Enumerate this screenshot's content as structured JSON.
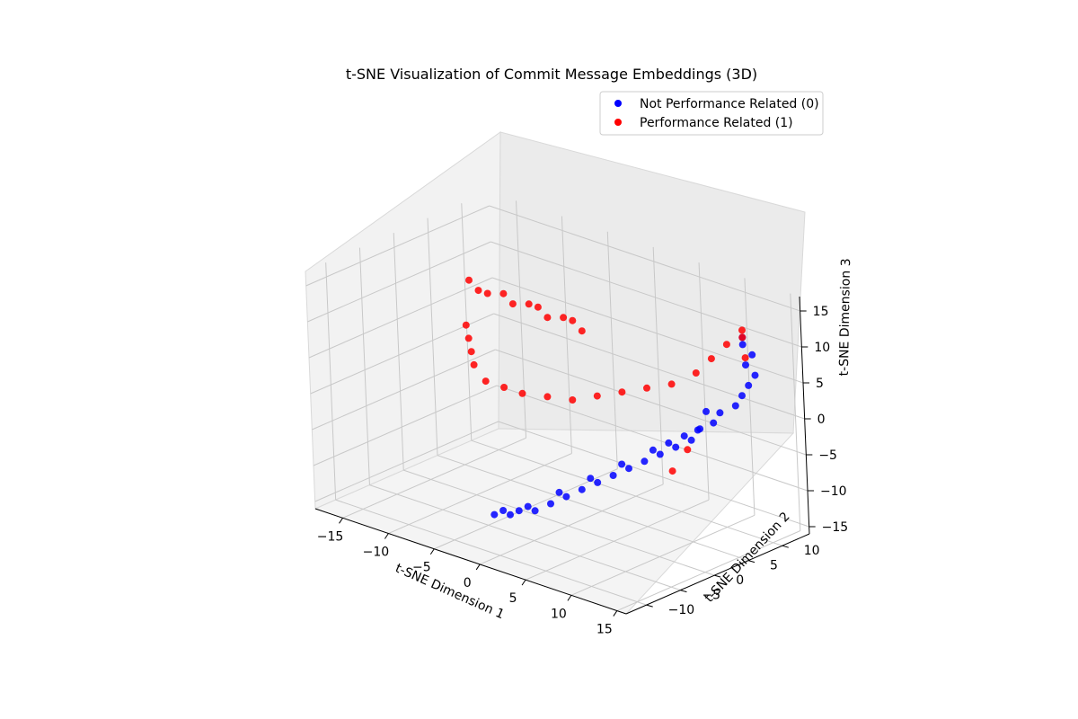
{
  "chart_data": {
    "type": "scatter",
    "projection": "3d",
    "title": "t-SNE Visualization of Commit Message Embeddings (3D)",
    "xlabel": "t-SNE Dimension 1",
    "ylabel": "t-SNE Dimension 2",
    "zlabel": "t-SNE Dimension 3",
    "xlim": [
      -18,
      16
    ],
    "ylim": [
      -13,
      14
    ],
    "zlim": [
      -16,
      17
    ],
    "xticks": [
      -15,
      -10,
      -5,
      0,
      5,
      10,
      15
    ],
    "yticks": [
      -10,
      -5,
      0,
      5,
      10
    ],
    "zticks": [
      -15,
      -10,
      -5,
      0,
      5,
      10,
      15
    ],
    "xtick_labels": [
      "−15",
      "−10",
      "−5",
      "0",
      "5",
      "10",
      "15"
    ],
    "ytick_labels": [
      "−10",
      "−5",
      "0",
      "5",
      "10"
    ],
    "ztick_labels": [
      "−15",
      "−10",
      "−5",
      "0",
      "5",
      "10",
      "15"
    ],
    "grid": true,
    "legend_position": "top-right",
    "series": [
      {
        "name": "Not Performance Related (0)",
        "color": "#0000ff",
        "points": [
          [
            -2,
            -8,
            -12
          ],
          [
            -1,
            -7,
            -12
          ],
          [
            0,
            -7,
            -11
          ],
          [
            1,
            -6,
            -11
          ],
          [
            2,
            -5,
            -10
          ],
          [
            3,
            -4,
            -9
          ],
          [
            4,
            -3,
            -8
          ],
          [
            5,
            -2,
            -7
          ],
          [
            6,
            -1,
            -6
          ],
          [
            7,
            0,
            -5
          ],
          [
            8,
            1,
            -4
          ],
          [
            9,
            2,
            -3
          ],
          [
            10,
            3,
            -2
          ],
          [
            11,
            4,
            -1
          ],
          [
            11,
            5,
            0
          ],
          [
            12,
            6,
            1
          ],
          [
            12,
            7,
            2
          ],
          [
            13,
            8,
            3
          ],
          [
            13,
            9,
            4
          ],
          [
            13,
            10,
            5
          ],
          [
            13,
            11,
            6
          ],
          [
            12,
            11,
            7
          ],
          [
            12,
            12,
            8
          ],
          [
            11,
            12,
            9
          ],
          [
            11,
            12,
            10
          ],
          [
            -1,
            -8,
            -11
          ],
          [
            1,
            -7,
            -10
          ],
          [
            3,
            -5,
            -8
          ],
          [
            5,
            -3,
            -6
          ],
          [
            7,
            -1,
            -4
          ],
          [
            9,
            1,
            -2
          ],
          [
            10,
            2,
            -1
          ],
          [
            11,
            3,
            0
          ],
          [
            12,
            4,
            1
          ],
          [
            12,
            5,
            3
          ]
        ]
      },
      {
        "name": "Performance Related (1)",
        "color": "#ff0000",
        "points": [
          [
            -16,
            8,
            8
          ],
          [
            -15,
            8,
            7
          ],
          [
            -14,
            8,
            7
          ],
          [
            -13,
            9,
            7
          ],
          [
            -12,
            9,
            6
          ],
          [
            -11,
            10,
            6
          ],
          [
            -10,
            10,
            6
          ],
          [
            -9,
            10,
            5
          ],
          [
            -8,
            11,
            5
          ],
          [
            -7,
            11,
            5
          ],
          [
            -6,
            11,
            4
          ],
          [
            -15,
            6,
            3
          ],
          [
            -14,
            5,
            2
          ],
          [
            -13,
            4,
            1
          ],
          [
            -12,
            3,
            0
          ],
          [
            -10,
            2,
            -1
          ],
          [
            -8,
            2,
            -1
          ],
          [
            -6,
            2,
            -1
          ],
          [
            -4,
            3,
            -1
          ],
          [
            -2,
            4,
            -1
          ],
          [
            0,
            5,
            0
          ],
          [
            2,
            6,
            1
          ],
          [
            4,
            7,
            2
          ],
          [
            6,
            8,
            3
          ],
          [
            8,
            9,
            5
          ],
          [
            9,
            10,
            7
          ],
          [
            10,
            11,
            9
          ],
          [
            11,
            12,
            10
          ],
          [
            11,
            12,
            11
          ],
          [
            12,
            11,
            8
          ],
          [
            9,
            6,
            -4
          ],
          [
            8,
            5,
            -7
          ]
        ]
      }
    ]
  }
}
